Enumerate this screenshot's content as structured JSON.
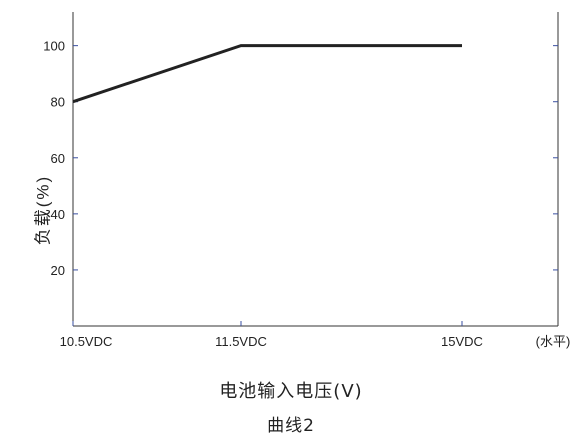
{
  "chart_data": {
    "type": "line",
    "title": "",
    "xlabel": "电池输入电压(V)",
    "ylabel": "负载(%)",
    "x_unit_label": "(水平)",
    "caption": "曲线2",
    "x_categories": [
      "10.5VDC",
      "11.5VDC",
      "15VDC"
    ],
    "x_values": [
      10.5,
      11.5,
      15
    ],
    "xlim": [
      10.5,
      17.2
    ],
    "ylim": [
      0,
      112
    ],
    "y_ticks": [
      20,
      40,
      60,
      80,
      100
    ],
    "y_tick_labels": [
      "20",
      "40",
      "60",
      "80",
      "100"
    ],
    "grid": false,
    "series": [
      {
        "x": [
          10.5,
          11.5,
          15
        ],
        "y": [
          80,
          100,
          100
        ],
        "color": "#222222"
      }
    ]
  }
}
